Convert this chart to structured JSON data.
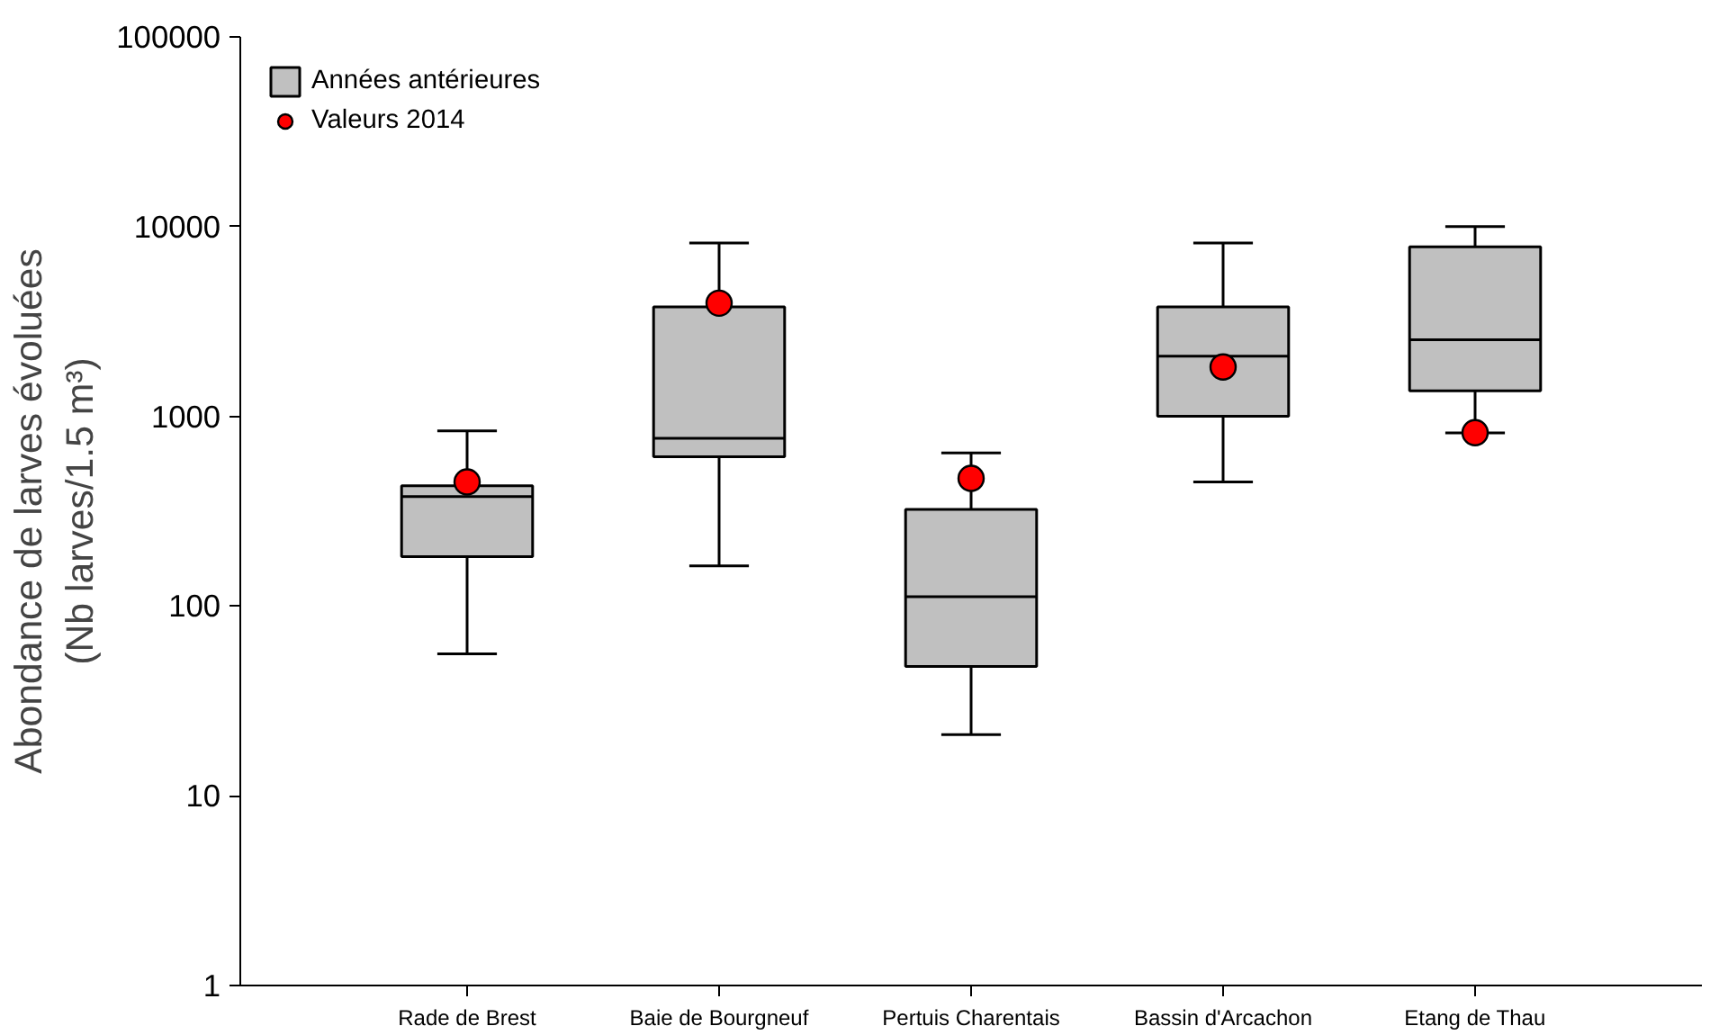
{
  "chart_data": {
    "type": "box",
    "ylabel": "Abondance de larves évoluées\n(Nb larves/1.5 m³)",
    "categories": [
      "Rade de Brest",
      "Baie de Bourgneuf",
      "Pertuis Charentais",
      "Bassin d'Arcachon",
      "Etang de Thau"
    ],
    "series": [
      {
        "name": "Années antérieures",
        "color": "#c0c0c0",
        "boxes": [
          {
            "low": 56,
            "q1": 182,
            "median": 378,
            "q3": 431,
            "high": 838
          },
          {
            "low": 163,
            "q1": 612,
            "median": 767,
            "q3": 3776,
            "high": 8190
          },
          {
            "low": 21,
            "q1": 48,
            "median": 112,
            "q3": 323,
            "high": 642
          },
          {
            "low": 451,
            "q1": 1000,
            "median": 2075,
            "q3": 3776,
            "high": 8190
          },
          {
            "low": 819,
            "q1": 1364,
            "median": 2534,
            "q3": 7830,
            "high": 10000
          }
        ]
      },
      {
        "name": "Valeurs 2014",
        "type": "scatter",
        "color": "#ff0000",
        "marker": "circle",
        "values": [
          451,
          3950,
          471,
          1820,
          820
        ]
      }
    ],
    "log": "y",
    "ylim": [
      1,
      100000
    ],
    "yticks": [
      1,
      10,
      100,
      1000,
      10000,
      100000
    ],
    "grid": false,
    "legend": "top left"
  }
}
